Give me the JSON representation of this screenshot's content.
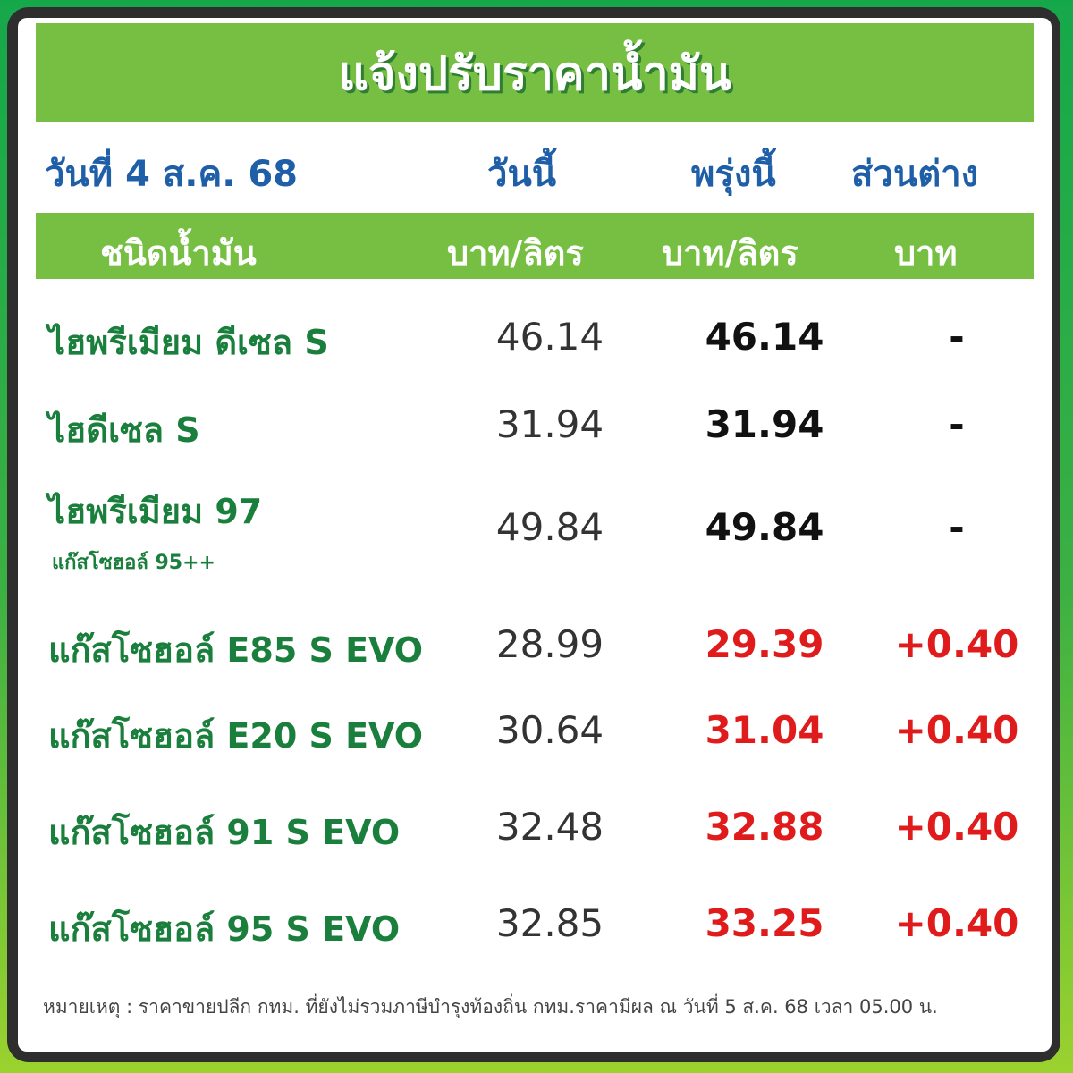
{
  "title": "แจ้งปรับราคาน้ำมัน",
  "date_label": "วันที่ 4 ส.ค. 68",
  "columns": {
    "today": "วันนี้",
    "tomorrow": "พรุ่งนี้",
    "diff": "ส่วนต่าง"
  },
  "units": {
    "type": "ชนิดน้ำมัน",
    "today": "บาท/ลิตร",
    "tomorrow": "บาท/ลิตร",
    "diff": "บาท"
  },
  "rows": [
    {
      "name": "ไฮพรีเมียม ดีเซล S",
      "sub": "",
      "today": "46.14",
      "tomorrow": "46.14",
      "diff": "-",
      "changed": false
    },
    {
      "name": "ไฮดีเซล S",
      "sub": "",
      "today": "31.94",
      "tomorrow": "31.94",
      "diff": "-",
      "changed": false
    },
    {
      "name": "ไฮพรีเมียม 97",
      "sub": "แก๊สโซฮอล์ 95++",
      "today": "49.84",
      "tomorrow": "49.84",
      "diff": "-",
      "changed": false
    },
    {
      "name": "แก๊สโซฮอล์ E85 S EVO",
      "sub": "",
      "today": "28.99",
      "tomorrow": "29.39",
      "diff": "+0.40",
      "changed": true
    },
    {
      "name": "แก๊สโซฮอล์ E20 S EVO",
      "sub": "",
      "today": "30.64",
      "tomorrow": "31.04",
      "diff": "+0.40",
      "changed": true
    },
    {
      "name": "แก๊สโซฮอล์ 91 S EVO",
      "sub": "",
      "today": "32.48",
      "tomorrow": "32.88",
      "diff": "+0.40",
      "changed": true
    },
    {
      "name": "แก๊สโซฮอล์ 95 S EVO",
      "sub": "",
      "today": "32.85",
      "tomorrow": "33.25",
      "diff": "+0.40",
      "changed": true
    }
  ],
  "note": "หมายเหตุ :  ราคาขายปลีก กทม. ที่ยังไม่รวมภาษีบำรุงท้องถิ่น กทม.ราคามีผล ณ วันที่ 5 ส.ค. 68 เวลา 05.00 น.",
  "colors": {
    "green_bar": "#76bf43",
    "blue_text": "#1f5fa8",
    "name_green": "#1a7f3c",
    "increase_red": "#e01b1b",
    "unchanged": "#111111"
  }
}
